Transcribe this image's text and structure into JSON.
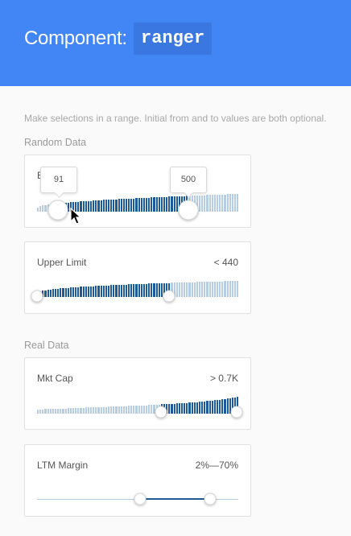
{
  "header": {
    "title": "Component:",
    "code": "ranger"
  },
  "intro": "Make selections in a range. Initial from and to values are both optional.",
  "sections": [
    {
      "title": "Random Data"
    },
    {
      "title": "Real Data"
    }
  ],
  "cards": [
    {
      "label": "B",
      "value": "",
      "tooltip_from": "91",
      "tooltip_to": "500",
      "selection": [
        0.1,
        0.75
      ]
    },
    {
      "label": "Upper Limit",
      "value": "< 440",
      "selection": [
        0.0,
        0.66
      ]
    },
    {
      "label": "Mkt Cap",
      "value": "> 0.7K",
      "selection": [
        0.62,
        1.0
      ]
    },
    {
      "label": "LTM Margin",
      "value": "2%—70%",
      "selection": [
        0.51,
        0.86
      ]
    }
  ],
  "colors": {
    "header": "#4285f4",
    "selected": "#1d5a96",
    "unselected": "#b6cde2"
  },
  "icons": {
    "cursor": "mouse-pointer-icon"
  }
}
